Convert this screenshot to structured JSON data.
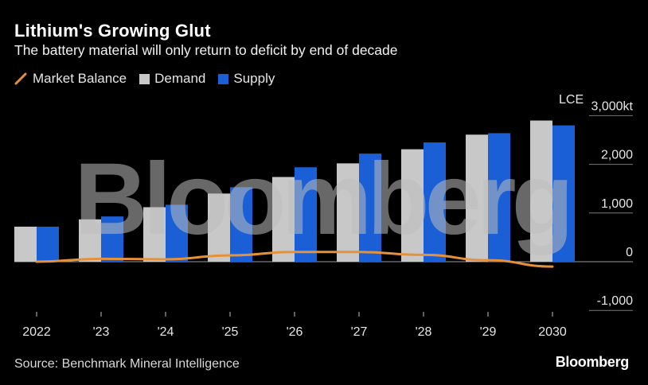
{
  "header": {
    "title": "Lithium's Growing Glut",
    "subtitle": "The battery material will only return to deficit by end of decade"
  },
  "legend": {
    "balance": "Market Balance",
    "demand": "Demand",
    "supply": "Supply"
  },
  "colors": {
    "demand": "#c8c8c8",
    "supply": "#1a5fd6",
    "balance": "#e5913a",
    "grid": "#7a7a7a"
  },
  "footer": {
    "source": "Source: Benchmark Mineral Intelligence",
    "brand": "Bloomberg"
  },
  "watermark": "Bloomberg",
  "chart_data": {
    "type": "bar",
    "title": "Lithium's Growing Glut",
    "subtitle": "The battery material will only return to deficit by end of decade",
    "ylabel": "LCE kt",
    "unit_label": "LCE",
    "categories": [
      "2022",
      "'23",
      "'24",
      "'25",
      "'26",
      "'27",
      "'28",
      "'29",
      "2030"
    ],
    "ylim": [
      -1000,
      3000
    ],
    "yticks": [
      -1000,
      0,
      1000,
      2000,
      3000
    ],
    "ytick_labels": [
      "-1,000",
      "0",
      "1,000",
      "2,000",
      "3,000kt"
    ],
    "series": [
      {
        "name": "Demand",
        "type": "bar",
        "values": [
          720,
          870,
          1120,
          1400,
          1740,
          2020,
          2310,
          2610,
          2900
        ]
      },
      {
        "name": "Supply",
        "type": "bar",
        "values": [
          720,
          930,
          1170,
          1530,
          1940,
          2220,
          2450,
          2640,
          2800
        ]
      },
      {
        "name": "Market Balance",
        "type": "line",
        "values": [
          0,
          60,
          50,
          130,
          200,
          200,
          140,
          30,
          -100
        ]
      }
    ],
    "legend_position": "top-left",
    "grid": true
  }
}
